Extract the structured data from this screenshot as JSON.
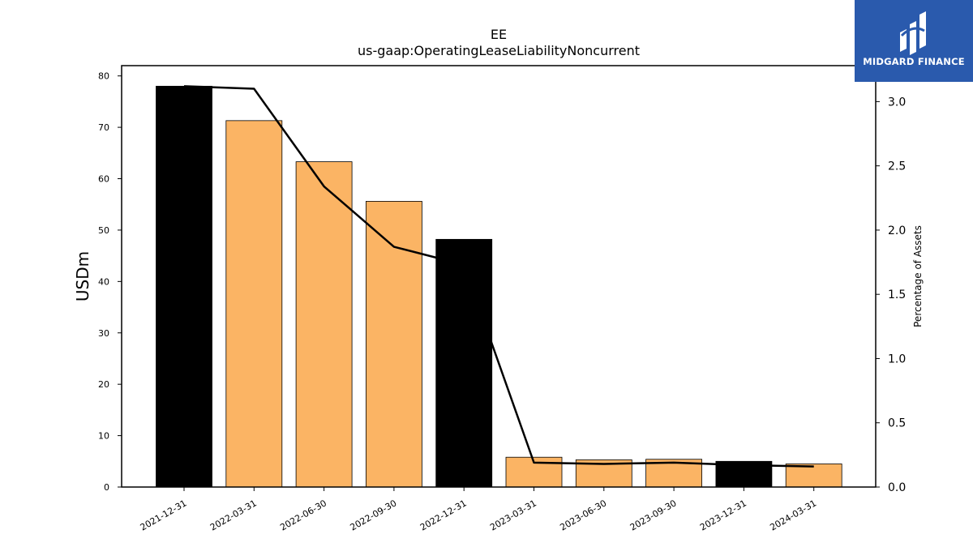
{
  "logo": {
    "text": "MIDGARD FINANCE",
    "icon": "midgard-logo-icon"
  },
  "chart_data": {
    "type": "bar",
    "title": "EE",
    "subtitle": "us-gaap:OperatingLeaseLiabilityNoncurrent",
    "ylabel": "USDm",
    "y2label": "Percentage of Assets",
    "ylim": [
      0,
      82
    ],
    "y2lim": [
      0,
      3.28
    ],
    "yticks": [
      0,
      10,
      20,
      30,
      40,
      50,
      60,
      70,
      80
    ],
    "y2ticks": [
      "0.0",
      "0.5",
      "1.0",
      "1.5",
      "2.0",
      "2.5",
      "3.0"
    ],
    "categories": [
      "2021-12-31",
      "2022-03-31",
      "2022-06-30",
      "2022-09-30",
      "2022-12-31",
      "2023-03-31",
      "2023-06-30",
      "2023-09-30",
      "2023-12-31",
      "2024-03-31"
    ],
    "values": [
      78.0,
      71.3,
      63.3,
      55.6,
      48.2,
      5.8,
      5.3,
      5.4,
      5.0,
      4.5
    ],
    "bar_colors": [
      "#000000",
      "#fbb464",
      "#fbb464",
      "#fbb464",
      "#000000",
      "#fbb464",
      "#fbb464",
      "#fbb464",
      "#000000",
      "#fbb464"
    ],
    "line_values": [
      3.12,
      3.1,
      2.34,
      1.87,
      1.73,
      0.19,
      0.18,
      0.19,
      0.17,
      0.16
    ],
    "line_color": "#000000",
    "grid": false
  }
}
